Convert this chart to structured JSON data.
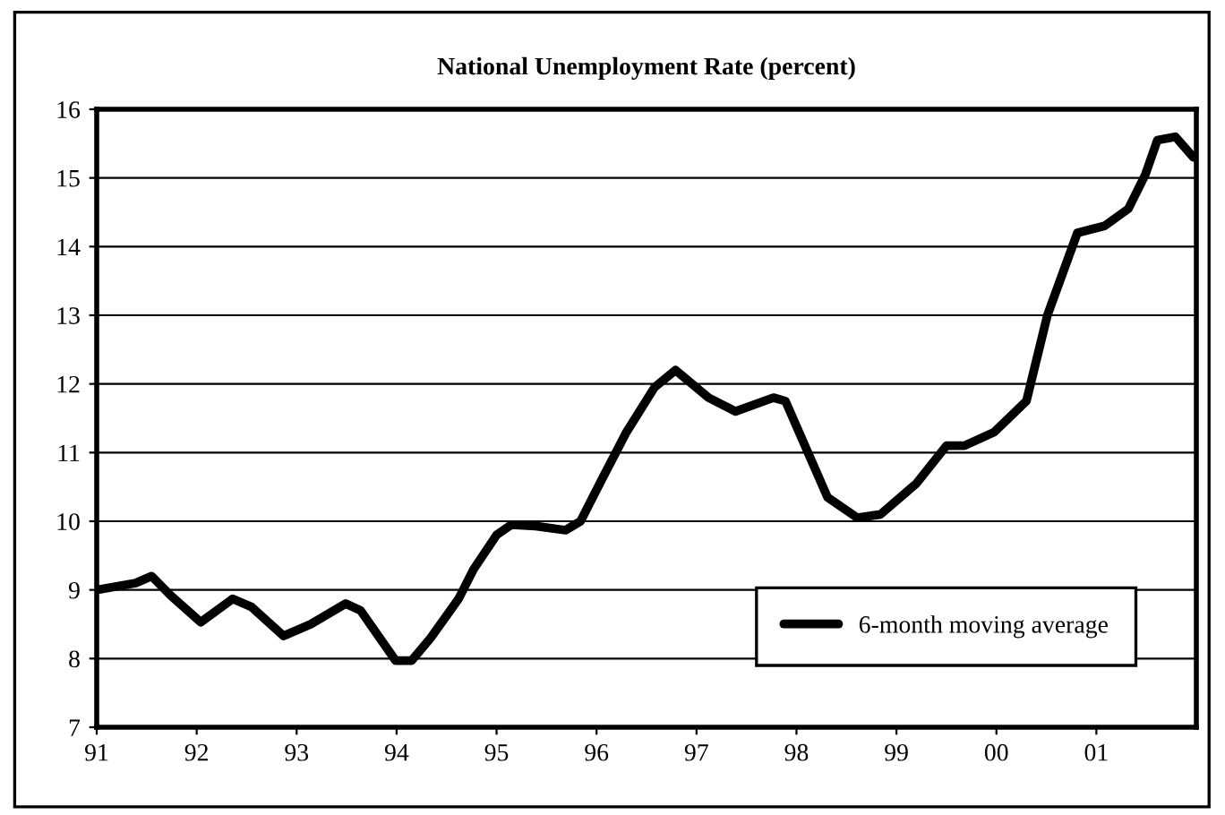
{
  "chart_data": {
    "type": "line",
    "title": "National Unemployment Rate (percent)",
    "x": [
      1991.0,
      1991.2,
      1991.39,
      1991.55,
      1991.74,
      1992.04,
      1992.36,
      1992.55,
      1992.87,
      1993.14,
      1993.49,
      1993.64,
      1993.99,
      1994.15,
      1994.34,
      1994.62,
      1994.77,
      1995.0,
      1995.15,
      1995.39,
      1995.69,
      1995.84,
      1996.05,
      1996.3,
      1996.58,
      1996.79,
      1997.12,
      1997.39,
      1997.77,
      1997.89,
      1998.07,
      1998.31,
      1998.61,
      1998.84,
      1999.2,
      1999.5,
      1999.68,
      1999.98,
      2000.3,
      2000.51,
      2000.81,
      2001.08,
      2001.32,
      2001.49,
      2001.61,
      2001.79,
      2001.97
    ],
    "series": [
      {
        "name": "6-month moving average",
        "color": "#000000",
        "values": [
          9.0,
          9.05,
          9.1,
          9.2,
          8.92,
          8.53,
          8.87,
          8.75,
          8.33,
          8.5,
          8.8,
          8.7,
          7.97,
          7.97,
          8.3,
          8.87,
          9.3,
          9.8,
          9.95,
          9.93,
          9.87,
          10.0,
          10.6,
          11.3,
          11.95,
          12.2,
          11.8,
          11.6,
          11.8,
          11.75,
          11.15,
          10.35,
          10.05,
          10.1,
          10.55,
          11.1,
          11.1,
          11.3,
          11.75,
          13.0,
          14.2,
          14.3,
          14.55,
          15.05,
          15.55,
          15.6,
          15.3
        ]
      }
    ],
    "xlim": [
      1991,
      2002
    ],
    "xticks": [
      {
        "value": 1991,
        "label": "91"
      },
      {
        "value": 1992,
        "label": "92"
      },
      {
        "value": 1993,
        "label": "93"
      },
      {
        "value": 1994,
        "label": "94"
      },
      {
        "value": 1995,
        "label": "95"
      },
      {
        "value": 1996,
        "label": "96"
      },
      {
        "value": 1997,
        "label": "97"
      },
      {
        "value": 1998,
        "label": "98"
      },
      {
        "value": 1999,
        "label": "99"
      },
      {
        "value": 2000,
        "label": "00"
      },
      {
        "value": 2001,
        "label": "01"
      }
    ],
    "ylim": [
      7,
      16
    ],
    "yticks": [
      7,
      8,
      9,
      10,
      11,
      12,
      13,
      14,
      15,
      16
    ],
    "grid": "y",
    "legend": "bottom right",
    "marker": "none",
    "line_style": "solid"
  }
}
